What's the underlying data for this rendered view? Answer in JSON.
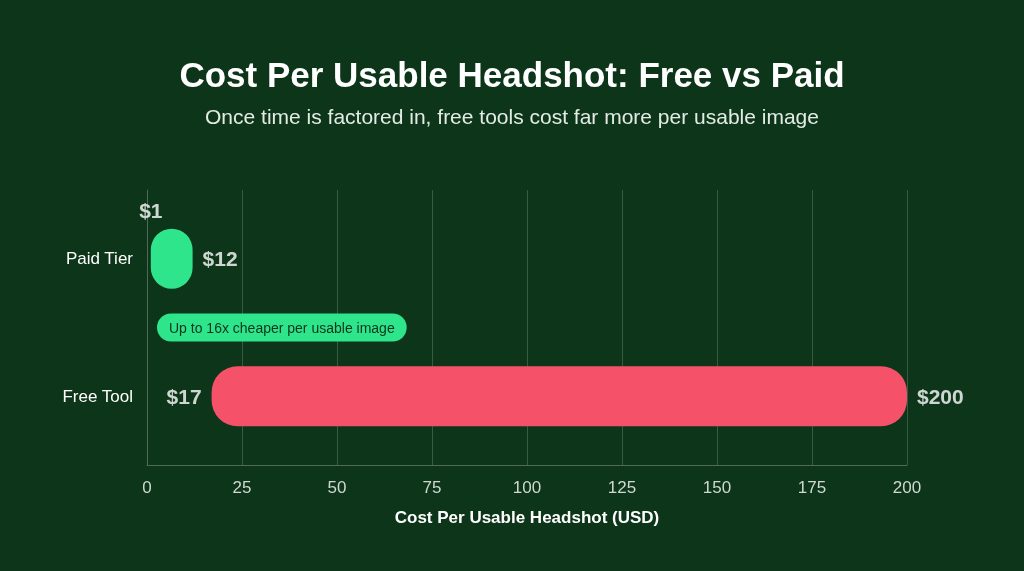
{
  "chart_data": {
    "type": "bar",
    "orientation": "horizontal",
    "title": "Cost Per Usable Headshot: Free vs Paid",
    "subtitle": "Once time is factored in, free tools cost far more per usable image",
    "xlabel": "Cost Per Usable Headshot (USD)",
    "categories": [
      "Paid Tier",
      "Free Tool"
    ],
    "base": [
      1,
      17
    ],
    "values": [
      11,
      183
    ],
    "colors": [
      "#2ee58c",
      "#f5526a"
    ],
    "xlim": [
      0,
      200
    ],
    "xticks": [
      0,
      25,
      50,
      75,
      100,
      125,
      150,
      175,
      200
    ],
    "grid": "x",
    "annotations": [
      {
        "text": "$1",
        "x": 1,
        "y": "Paid Tier"
      },
      {
        "text": "$12",
        "x": 12,
        "y": "Paid Tier"
      },
      {
        "text": "$17",
        "x": 17,
        "y": "Free Tool"
      },
      {
        "text": "$200",
        "x": 200,
        "y": "Free Tool"
      },
      "Up to 16x cheaper per usable image"
    ]
  }
}
